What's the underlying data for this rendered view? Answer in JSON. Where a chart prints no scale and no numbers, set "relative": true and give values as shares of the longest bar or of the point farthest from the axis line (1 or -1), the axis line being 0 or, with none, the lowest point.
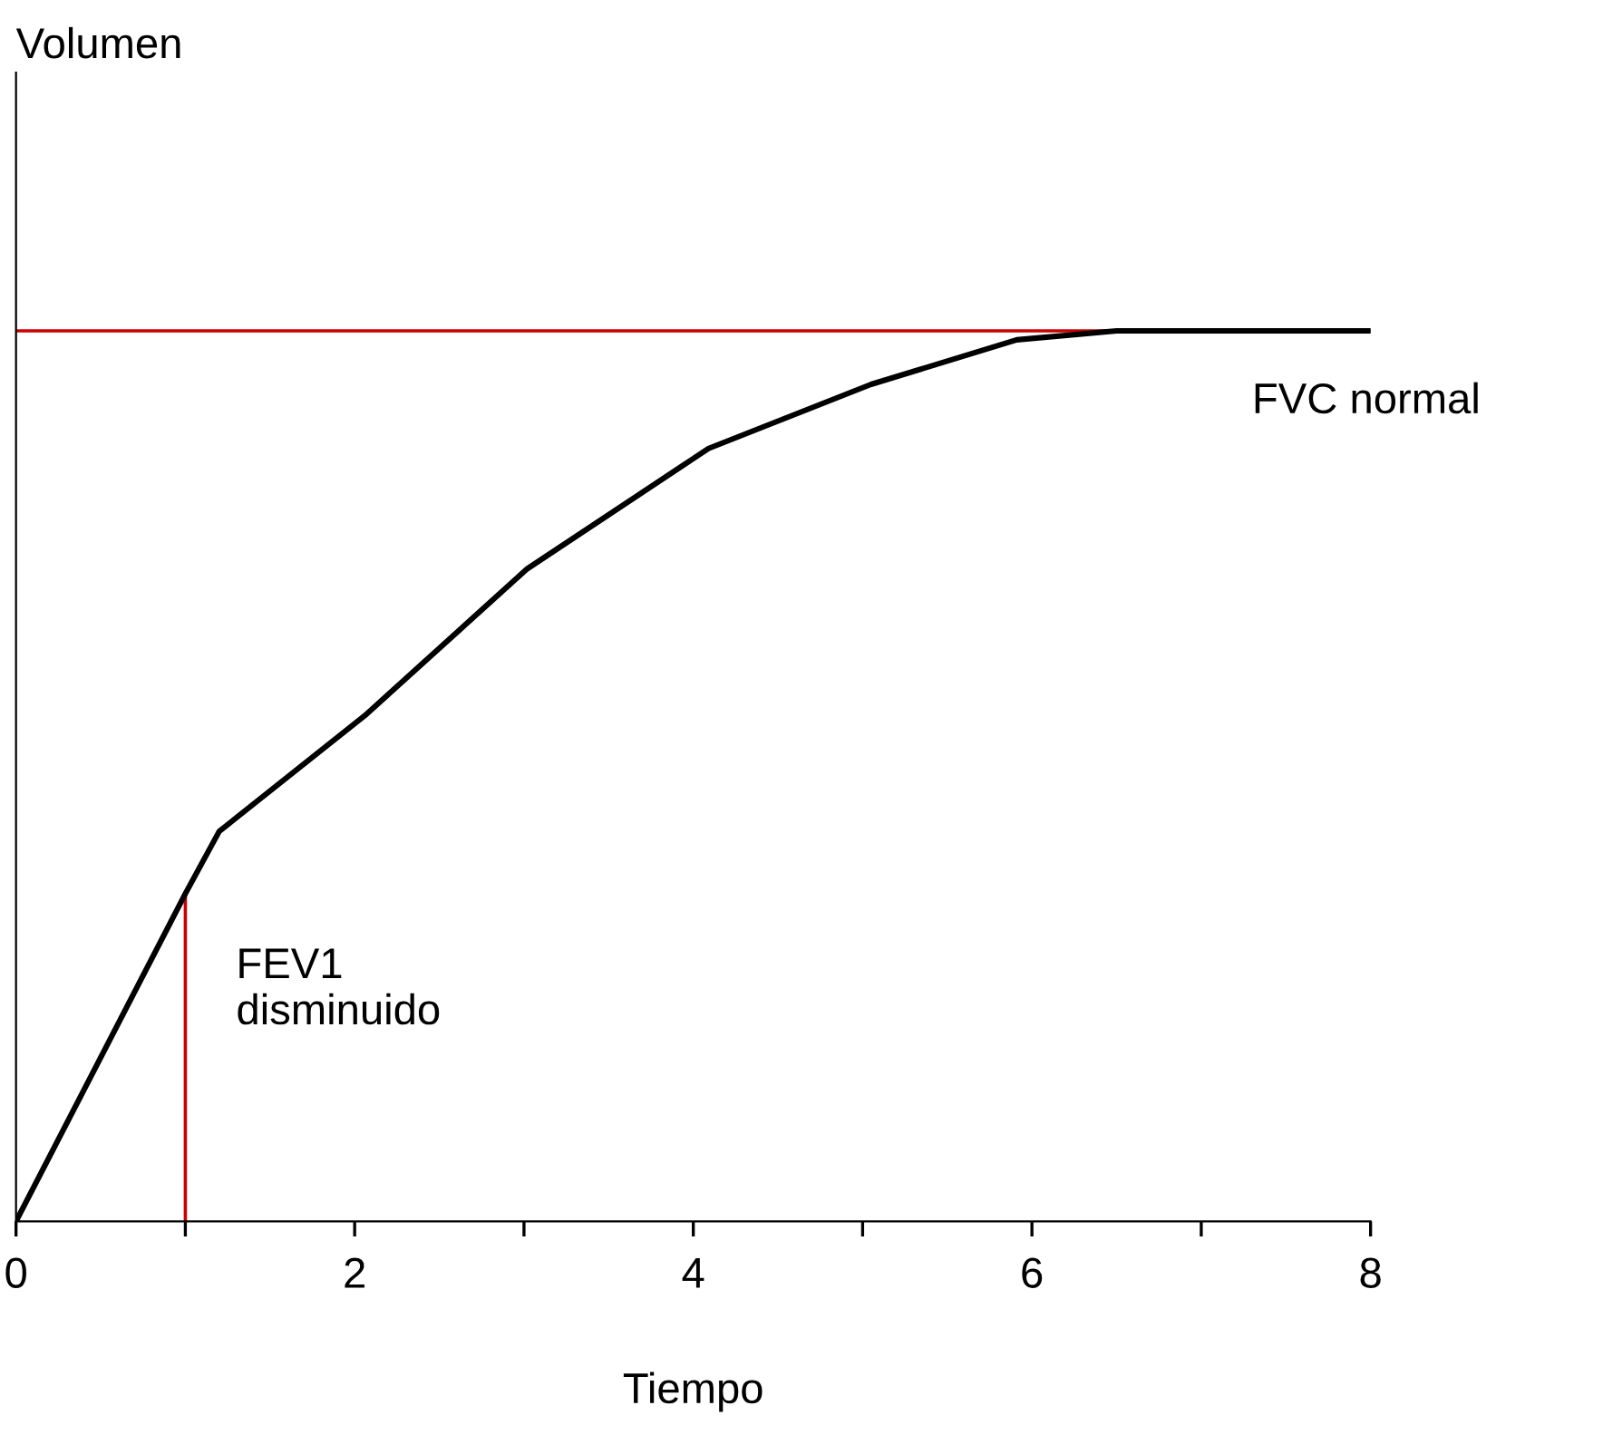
{
  "chart_data": {
    "type": "line",
    "annotations": [
      "Volumen"
    ],
    "xlabel": "Tiempo",
    "relative": true,
    "xlim": [
      0,
      8
    ],
    "xticks": [
      0,
      {
        "value": 1,
        "label": null
      },
      2,
      {
        "value": 3,
        "label": null
      },
      4,
      {
        "value": 5,
        "label": null
      },
      6,
      {
        "value": 7,
        "label": null
      },
      8
    ],
    "series": [
      {
        "color": "#000000",
        "x": [
          0,
          1,
          1.2,
          2.06,
          3.02,
          4.09,
          5.05,
          5.91,
          6.5,
          8
        ],
        "values": [
          0,
          0.368,
          0.438,
          0.568,
          0.733,
          0.868,
          0.94,
          0.99,
          1,
          1
        ]
      }
    ],
    "ref_lines": [
      {
        "axis": "y",
        "value": 1,
        "label": "FVC normal",
        "color": "#cc0000"
      },
      {
        "axis": "x",
        "value": 1,
        "label": "FEV1\ndisminuido",
        "color": "#cc0000"
      }
    ],
    "grid": false,
    "marker": "none",
    "line_style": "solid"
  }
}
